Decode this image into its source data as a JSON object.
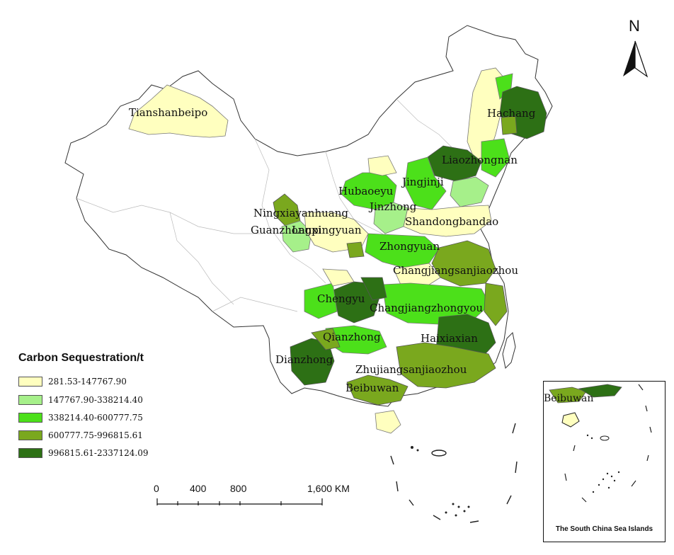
{
  "legend": {
    "title": "Carbon Sequestration/t",
    "classes": [
      {
        "label": "281.53-147767.90",
        "color": "#ffffbf"
      },
      {
        "label": "147767.90-338214.40",
        "color": "#a6f08a"
      },
      {
        "label": "338214.40-600777.75",
        "color": "#4ce01a"
      },
      {
        "label": "600777.75-996815.61",
        "color": "#7aa81e"
      },
      {
        "label": "996815.61-2337124.09",
        "color": "#2d7015"
      }
    ]
  },
  "regions": [
    {
      "name": "Tianshanbeipo",
      "class": 0
    },
    {
      "name": "Hachang",
      "class": 4
    },
    {
      "name": "Liaozhongnan",
      "class": 4
    },
    {
      "name": "Jingjinji",
      "class": 2
    },
    {
      "name": "Hubaoeyu",
      "class": 2
    },
    {
      "name": "Jinzhong",
      "class": 1
    },
    {
      "name": "Ningxiayanhuang",
      "class": 3
    },
    {
      "name": "Lanxi",
      "class": 1
    },
    {
      "name": "Guanzhongpingyuan",
      "class": 0
    },
    {
      "name": "Shandongbandao",
      "class": 0
    },
    {
      "name": "Zhongyuan",
      "class": 2
    },
    {
      "name": "Changjiangsanjiaozhou",
      "class": 3
    },
    {
      "name": "Chengyu",
      "class": 4
    },
    {
      "name": "Changjiangzhongyou",
      "class": 2
    },
    {
      "name": "Haixiaxian",
      "class": 4
    },
    {
      "name": "Qianzhong",
      "class": 2
    },
    {
      "name": "Dianzhong",
      "class": 4
    },
    {
      "name": "Zhujiangsanjiaozhou",
      "class": 3
    },
    {
      "name": "Beibuwan",
      "class": 3
    }
  ],
  "scale_bar": {
    "ticks": [
      "0",
      "400",
      "800",
      "1,600 KM"
    ]
  },
  "north_arrow": {
    "label": "N",
    "icon": "north-arrow-icon"
  },
  "inset": {
    "caption": "The South China Sea Islands",
    "label": "Beibuwan"
  }
}
